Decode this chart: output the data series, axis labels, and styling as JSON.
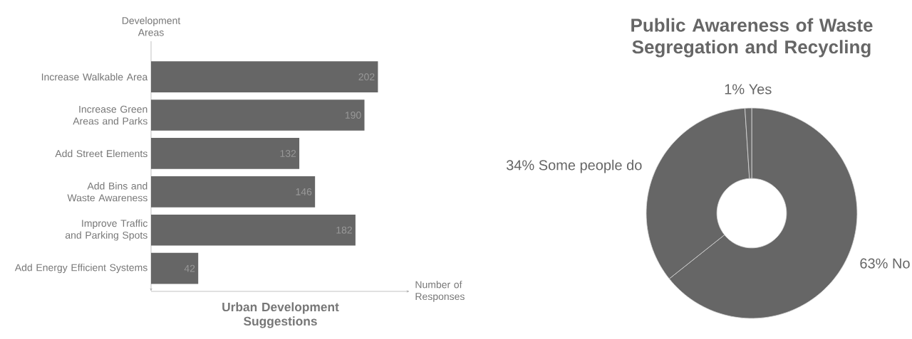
{
  "chart_data": [
    {
      "type": "bar",
      "orientation": "horizontal",
      "title": "Urban Development Suggestions",
      "xlabel": "Number of Responses",
      "ylabel": "Development Areas",
      "categories": [
        "Increase Walkable Area",
        "Increase Green Areas and Parks",
        "Add Street Elements",
        "Add Bins and Waste Awareness",
        "Improve Traffic and Parking Spots",
        "Add Energy Efficient Systems"
      ],
      "values": [
        202,
        190,
        132,
        146,
        182,
        42
      ],
      "color": "#666666",
      "data_labels": true
    },
    {
      "type": "donut",
      "title": "Public Awareness of Waste Segregation and Recycling",
      "categories": [
        "No",
        "Some people do",
        "Yes"
      ],
      "values": [
        63,
        34,
        1
      ],
      "value_labels": [
        "63%",
        "34%",
        "1%"
      ],
      "colors": [
        "#666666",
        "#666666",
        "#666666"
      ]
    }
  ]
}
